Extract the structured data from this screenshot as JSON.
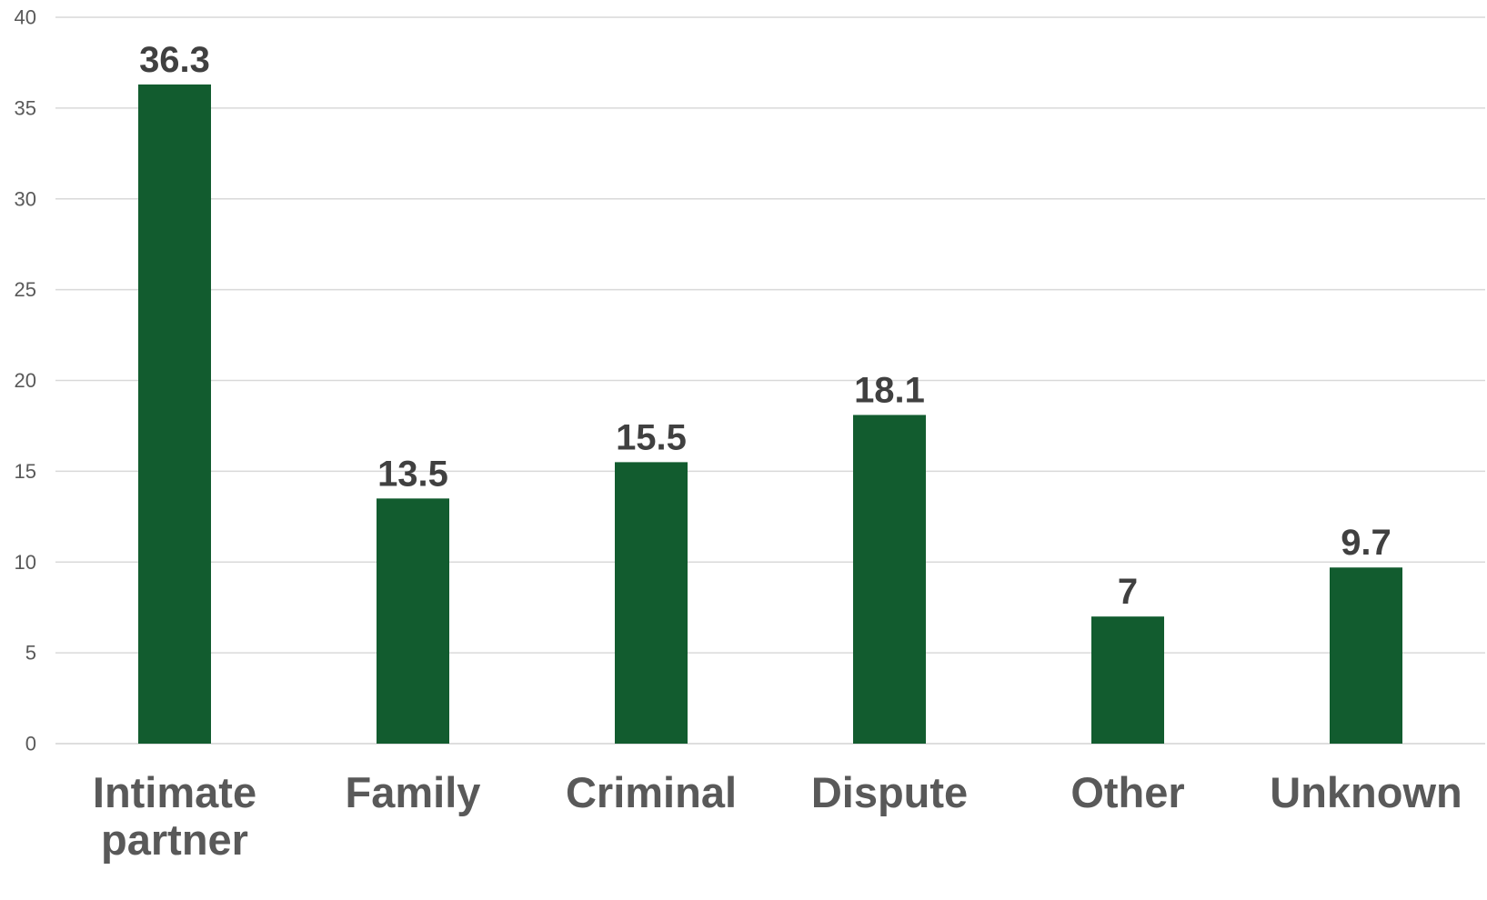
{
  "chart_data": {
    "type": "bar",
    "categories": [
      "Intimate partner",
      "Family",
      "Criminal",
      "Dispute",
      "Other",
      "Unknown"
    ],
    "values": [
      36.3,
      13.5,
      15.5,
      18.1,
      7,
      9.7
    ],
    "data_labels": [
      "36.3",
      "13.5",
      "15.5",
      "18.1",
      "7",
      "9.7"
    ],
    "title": "",
    "xlabel": "",
    "ylabel": "",
    "ylim": [
      0,
      40
    ],
    "yticks": [
      0,
      5,
      10,
      15,
      20,
      25,
      30,
      35,
      40
    ],
    "grid": true,
    "legend": "none",
    "colors": {
      "bar": "#125c2f",
      "gridline": "#d9d9d9",
      "axis_text": "#595959",
      "data_label": "#404040"
    }
  }
}
